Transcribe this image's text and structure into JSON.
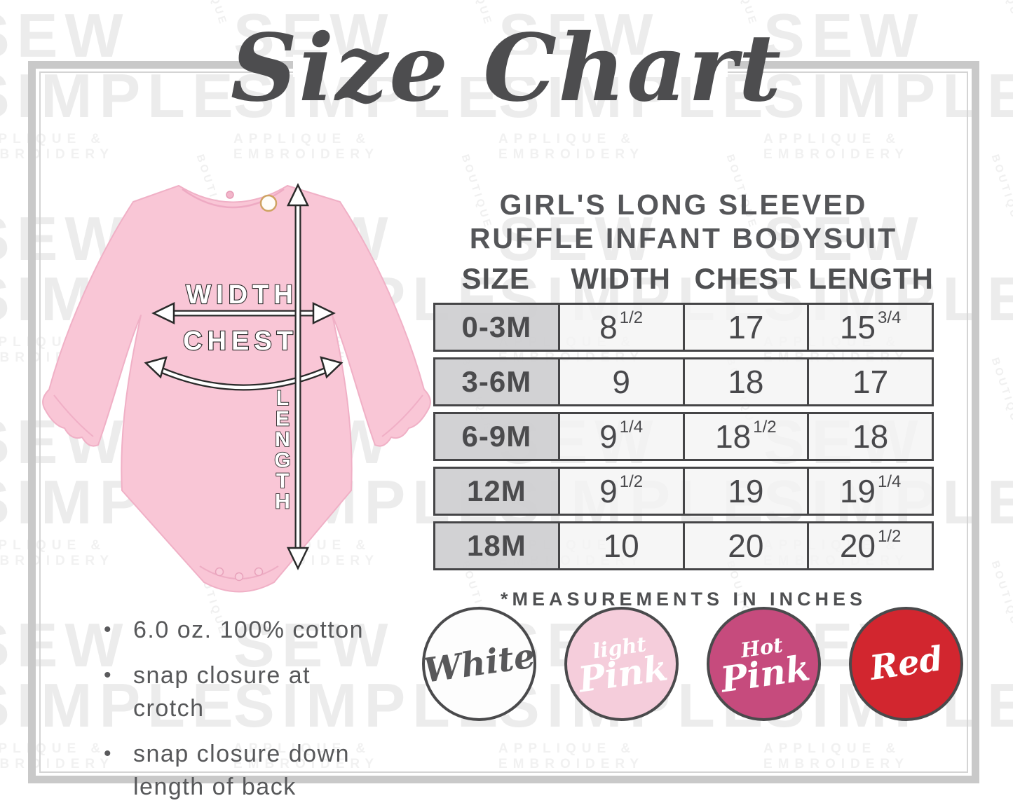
{
  "page": {
    "title": "Size Chart"
  },
  "watermark": {
    "word1": "SEW",
    "word2": "SIMPLE",
    "subtitle": "APPLIQUE & EMBROIDERY",
    "side_word": "BOUTIQUE"
  },
  "garment": {
    "color": "#f9c6d6",
    "labels": {
      "width": "WIDTH",
      "chest": "CHEST",
      "length": "LENGTH"
    }
  },
  "chart_data": {
    "type": "table",
    "title": "GIRL'S LONG SLEEVED RUFFLE INFANT BODYSUIT",
    "title_lines": [
      "GIRL'S LONG SLEEVED",
      "RUFFLE INFANT BODYSUIT"
    ],
    "columns": [
      "SIZE",
      "WIDTH",
      "CHEST",
      "LENGTH"
    ],
    "units": "inches",
    "rows": [
      {
        "size": "0-3M",
        "values": [
          {
            "base": "8",
            "sup": "1/2"
          },
          {
            "base": "17"
          },
          {
            "base": "15",
            "sup": "3/4"
          }
        ]
      },
      {
        "size": "3-6M",
        "values": [
          {
            "base": "9"
          },
          {
            "base": "18"
          },
          {
            "base": "17"
          }
        ]
      },
      {
        "size": "6-9M",
        "values": [
          {
            "base": "9",
            "sup": "1/4"
          },
          {
            "base": "18",
            "sup": "1/2"
          },
          {
            "base": "18"
          }
        ]
      },
      {
        "size": "12M",
        "values": [
          {
            "base": "9",
            "sup": "1/2"
          },
          {
            "base": "19"
          },
          {
            "base": "19",
            "sup": "1/4"
          }
        ]
      },
      {
        "size": "18M",
        "values": [
          {
            "base": "10"
          },
          {
            "base": "20"
          },
          {
            "base": "20",
            "sup": "1/2"
          }
        ]
      }
    ],
    "footnote": "*MEASUREMENTS IN INCHES"
  },
  "features": [
    "6.0 oz. 100% cotton",
    "snap closure at crotch",
    "snap closure down length of back"
  ],
  "colors": [
    {
      "name": "White",
      "label_lines": [
        "White"
      ],
      "fill": "#fdfdfd",
      "text_color": "#58585a"
    },
    {
      "name": "light Pink",
      "label_lines": [
        "light",
        "Pink"
      ],
      "fill": "#f5cddb",
      "text_color": "#ffffff"
    },
    {
      "name": "Hot Pink",
      "label_lines": [
        "Hot",
        "Pink"
      ],
      "fill": "#c64b7d",
      "text_color": "#ffffff"
    },
    {
      "name": "Red",
      "label_lines": [
        "Red"
      ],
      "fill": "#d2262f",
      "text_color": "#ffffff"
    }
  ],
  "palette": {
    "ink": "#4a4a4c",
    "frame": "#c9c9c9",
    "garment_pink": "#f9c6d6"
  }
}
